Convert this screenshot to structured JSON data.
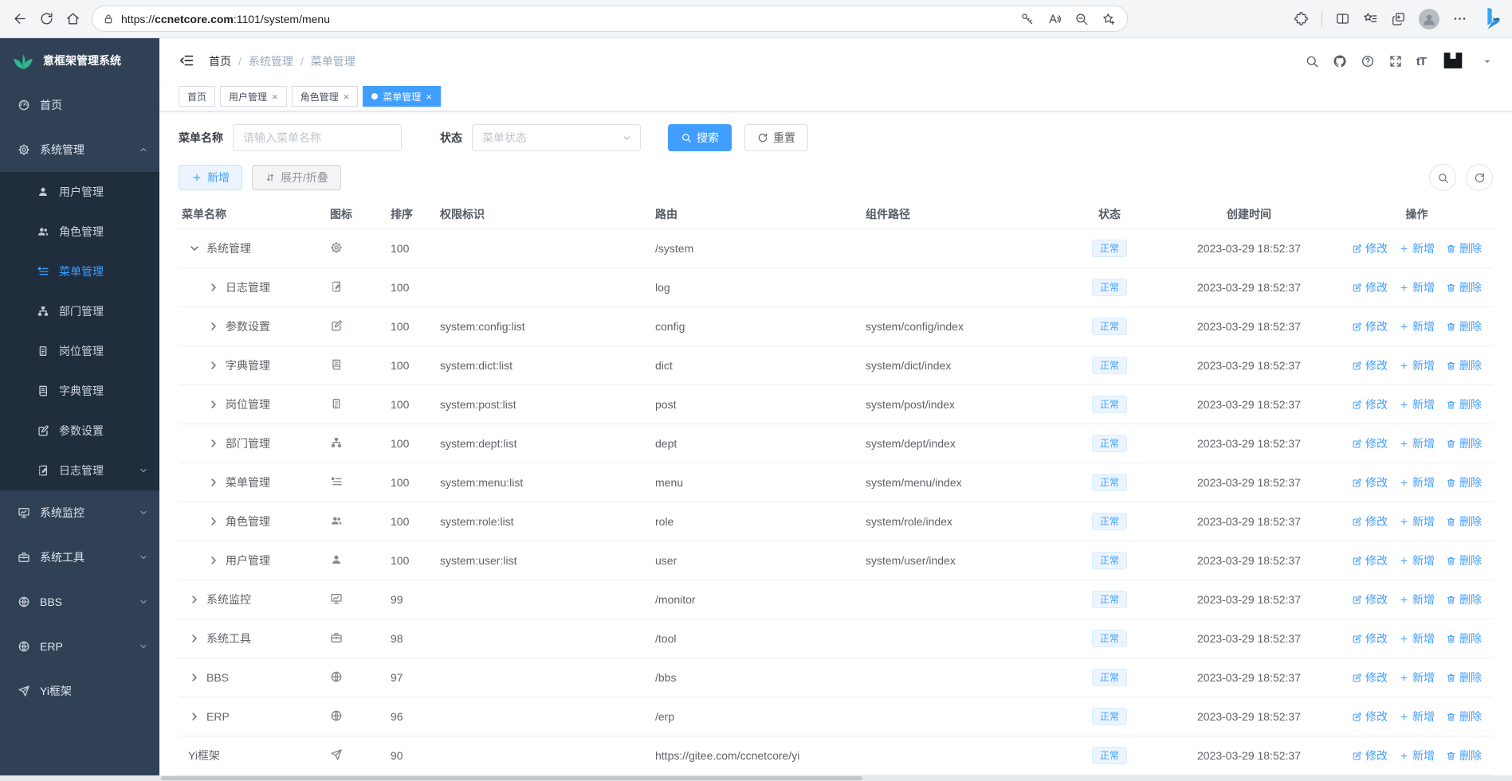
{
  "browser": {
    "url_protocol": "https://",
    "url_host": "ccnetcore.com",
    "url_rest": ":1101/system/menu",
    "left_icons": [
      "back",
      "refresh",
      "home"
    ],
    "pill_icons": [
      "key",
      "read-aloud",
      "zoom-out",
      "star-plus"
    ],
    "right_icons": [
      "extensions",
      "split-screen",
      "favorites",
      "collections",
      "profile",
      "more",
      "bing"
    ]
  },
  "app_title": "意框架管理系统",
  "colors": {
    "accent": "#409eff",
    "sidebar_bg": "#304156",
    "sidebar_submenu_bg": "#1f2d3d",
    "badge_bg": "#ecf5ff",
    "logo_green": "#2eb890"
  },
  "sidebar": {
    "items": [
      {
        "key": "home",
        "icon": "dashboard",
        "label": "首页"
      },
      {
        "key": "system",
        "icon": "gear",
        "label": "系统管理",
        "chevron": "up",
        "children": [
          {
            "key": "user",
            "icon": "user",
            "label": "用户管理"
          },
          {
            "key": "role",
            "icon": "users",
            "label": "角色管理"
          },
          {
            "key": "menu",
            "icon": "menu-list",
            "label": "菜单管理",
            "active": true
          },
          {
            "key": "dept",
            "icon": "org-tree",
            "label": "部门管理"
          },
          {
            "key": "post",
            "icon": "post-badge",
            "label": "岗位管理"
          },
          {
            "key": "dict",
            "icon": "dict-book",
            "label": "字典管理"
          },
          {
            "key": "config",
            "icon": "edit-square",
            "label": "参数设置"
          },
          {
            "key": "log",
            "icon": "log-edit",
            "label": "日志管理",
            "chevron": "down"
          }
        ]
      },
      {
        "key": "monitor",
        "icon": "monitor",
        "label": "系统监控",
        "chevron": "down"
      },
      {
        "key": "tool",
        "icon": "toolbox",
        "label": "系统工具",
        "chevron": "down"
      },
      {
        "key": "bbs",
        "icon": "globe",
        "label": "BBS",
        "chevron": "down"
      },
      {
        "key": "erp",
        "icon": "globe",
        "label": "ERP",
        "chevron": "down"
      },
      {
        "key": "yi",
        "icon": "paper-plane",
        "label": "Yi框架"
      }
    ]
  },
  "breadcrumb": {
    "items": [
      "首页",
      "系统管理",
      "菜单管理"
    ]
  },
  "tabs": [
    {
      "label": "首页",
      "closable": false,
      "active": false
    },
    {
      "label": "用户管理",
      "closable": true,
      "active": false
    },
    {
      "label": "角色管理",
      "closable": true,
      "active": false
    },
    {
      "label": "菜单管理",
      "closable": true,
      "active": true
    }
  ],
  "filters": {
    "name_label": "菜单名称",
    "name_placeholder": "请输入菜单名称",
    "status_label": "状态",
    "status_placeholder": "菜单状态",
    "search_label": "搜索",
    "reset_label": "重置"
  },
  "toolbar": {
    "add_label": "新增",
    "expand_label": "展开/折叠"
  },
  "table": {
    "columns": [
      "菜单名称",
      "图标",
      "排序",
      "权限标识",
      "路由",
      "组件路径",
      "状态",
      "创建时间",
      "操作"
    ],
    "row_actions": [
      {
        "key": "edit",
        "icon": "edit-pen",
        "label": "修改"
      },
      {
        "key": "add",
        "icon": "plus",
        "label": "新增"
      },
      {
        "key": "delete",
        "icon": "trash",
        "label": "删除"
      }
    ],
    "rows": [
      {
        "name": "系统管理",
        "icon": "gear",
        "level": 0,
        "arrow": "down",
        "sort": "100",
        "perm": "",
        "route": "/system",
        "component": "",
        "status": "正常",
        "created": "2023-03-29 18:52:37"
      },
      {
        "name": "日志管理",
        "icon": "log-edit",
        "level": 1,
        "arrow": "right",
        "sort": "100",
        "perm": "",
        "route": "log",
        "component": "",
        "status": "正常",
        "created": "2023-03-29 18:52:37"
      },
      {
        "name": "参数设置",
        "icon": "edit-square",
        "level": 1,
        "arrow": "right",
        "sort": "100",
        "perm": "system:config:list",
        "route": "config",
        "component": "system/config/index",
        "status": "正常",
        "created": "2023-03-29 18:52:37"
      },
      {
        "name": "字典管理",
        "icon": "dict-book",
        "level": 1,
        "arrow": "right",
        "sort": "100",
        "perm": "system:dict:list",
        "route": "dict",
        "component": "system/dict/index",
        "status": "正常",
        "created": "2023-03-29 18:52:37"
      },
      {
        "name": "岗位管理",
        "icon": "post-badge",
        "level": 1,
        "arrow": "right",
        "sort": "100",
        "perm": "system:post:list",
        "route": "post",
        "component": "system/post/index",
        "status": "正常",
        "created": "2023-03-29 18:52:37"
      },
      {
        "name": "部门管理",
        "icon": "org-tree",
        "level": 1,
        "arrow": "right",
        "sort": "100",
        "perm": "system:dept:list",
        "route": "dept",
        "component": "system/dept/index",
        "status": "正常",
        "created": "2023-03-29 18:52:37"
      },
      {
        "name": "菜单管理",
        "icon": "menu-list",
        "level": 1,
        "arrow": "right",
        "sort": "100",
        "perm": "system:menu:list",
        "route": "menu",
        "component": "system/menu/index",
        "status": "正常",
        "created": "2023-03-29 18:52:37"
      },
      {
        "name": "角色管理",
        "icon": "users",
        "level": 1,
        "arrow": "right",
        "sort": "100",
        "perm": "system:role:list",
        "route": "role",
        "component": "system/role/index",
        "status": "正常",
        "created": "2023-03-29 18:52:37"
      },
      {
        "name": "用户管理",
        "icon": "user",
        "level": 1,
        "arrow": "right",
        "sort": "100",
        "perm": "system:user:list",
        "route": "user",
        "component": "system/user/index",
        "status": "正常",
        "created": "2023-03-29 18:52:37"
      },
      {
        "name": "系统监控",
        "icon": "monitor",
        "level": 0,
        "arrow": "right",
        "sort": "99",
        "perm": "",
        "route": "/monitor",
        "component": "",
        "status": "正常",
        "created": "2023-03-29 18:52:37"
      },
      {
        "name": "系统工具",
        "icon": "toolbox",
        "level": 0,
        "arrow": "right",
        "sort": "98",
        "perm": "",
        "route": "/tool",
        "component": "",
        "status": "正常",
        "created": "2023-03-29 18:52:37"
      },
      {
        "name": "BBS",
        "icon": "globe",
        "level": 0,
        "arrow": "right",
        "sort": "97",
        "perm": "",
        "route": "/bbs",
        "component": "",
        "status": "正常",
        "created": "2023-03-29 18:52:37"
      },
      {
        "name": "ERP",
        "icon": "globe",
        "level": 0,
        "arrow": "right",
        "sort": "96",
        "perm": "",
        "route": "/erp",
        "component": "",
        "status": "正常",
        "created": "2023-03-29 18:52:37"
      },
      {
        "name": "Yi框架",
        "icon": "paper-plane",
        "level": 0,
        "arrow": "none",
        "sort": "90",
        "perm": "",
        "route": "https://gitee.com/ccnetcore/yi",
        "component": "",
        "status": "正常",
        "created": "2023-03-29 18:52:37"
      }
    ]
  }
}
